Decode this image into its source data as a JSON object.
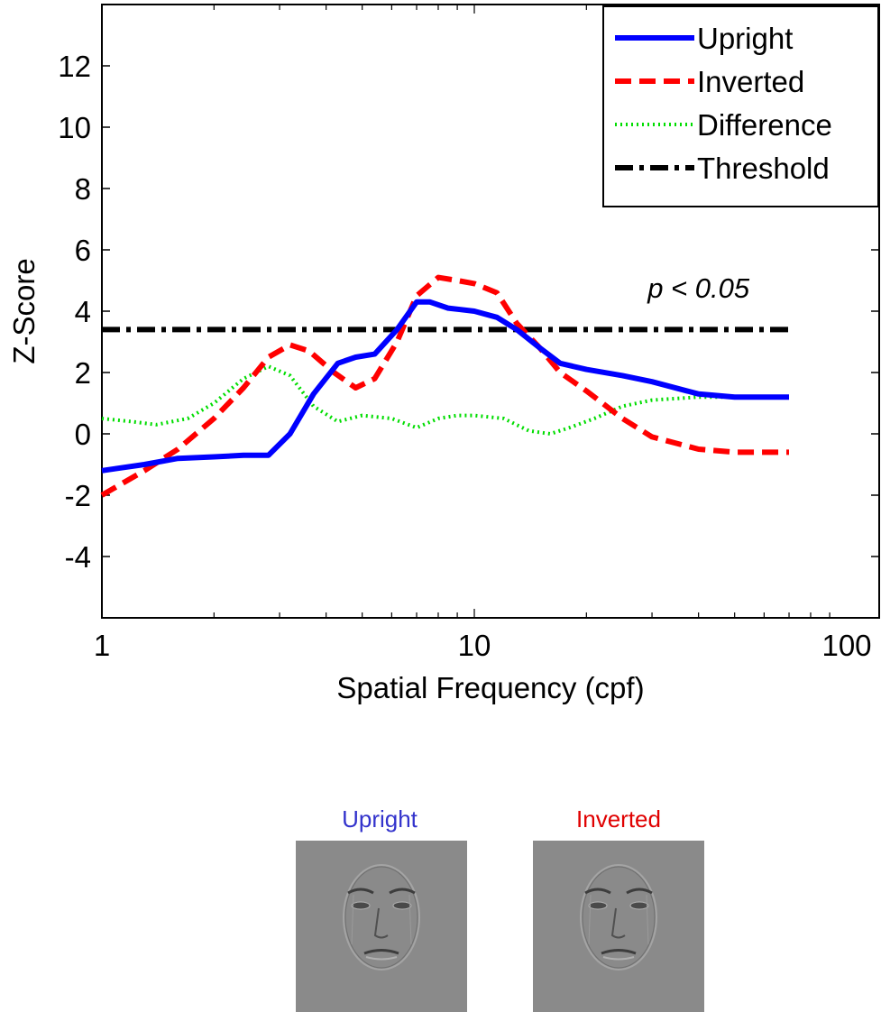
{
  "chart_data": {
    "type": "line",
    "xlabel": "Spatial Frequency (cpf)",
    "ylabel": "Z-Score",
    "xscale": "log",
    "xlim": [
      1,
      100
    ],
    "ylim": [
      -6,
      14
    ],
    "xticks": [
      1,
      10,
      100
    ],
    "xtick_labels": [
      "1",
      "10",
      "100"
    ],
    "yticks": [
      -4,
      -2,
      0,
      2,
      4,
      6,
      8,
      10,
      12
    ],
    "ytick_labels": [
      "-4",
      "-2",
      "0",
      "2",
      "4",
      "6",
      "8",
      "10",
      "12"
    ],
    "grid": false,
    "legend_position": "top-right",
    "annotation": {
      "text": "p < 0.05",
      "x": 40,
      "y": 4.2
    },
    "series": [
      {
        "name": "Upright",
        "color": "#0000ff",
        "style": "solid",
        "x": [
          1,
          1.3,
          1.6,
          2,
          2.4,
          2.8,
          3.2,
          3.7,
          4.3,
          4.8,
          5.4,
          6.2,
          7.0,
          7.6,
          8.5,
          10,
          11.5,
          13,
          15,
          17,
          20,
          25,
          30,
          40,
          50,
          70
        ],
        "y": [
          -1.2,
          -1.0,
          -0.8,
          -0.75,
          -0.7,
          -0.7,
          0.0,
          1.3,
          2.3,
          2.5,
          2.6,
          3.4,
          4.3,
          4.3,
          4.1,
          4.0,
          3.8,
          3.4,
          2.8,
          2.3,
          2.1,
          1.9,
          1.7,
          1.3,
          1.2,
          1.2
        ]
      },
      {
        "name": "Inverted",
        "color": "#ff0000",
        "style": "dashed",
        "x": [
          1,
          1.3,
          1.6,
          2,
          2.4,
          2.8,
          3.2,
          3.6,
          4.2,
          4.8,
          5.4,
          6.2,
          7.0,
          8.0,
          9.0,
          10,
          11.5,
          13,
          15,
          17,
          20,
          25,
          30,
          40,
          50,
          70
        ],
        "y": [
          -2.0,
          -1.2,
          -0.5,
          0.5,
          1.5,
          2.5,
          2.9,
          2.7,
          2.0,
          1.5,
          1.8,
          3.0,
          4.5,
          5.1,
          5.0,
          4.9,
          4.6,
          3.6,
          2.8,
          2.0,
          1.4,
          0.5,
          -0.1,
          -0.5,
          -0.6,
          -0.6
        ]
      },
      {
        "name": "Difference",
        "color": "#00dd00",
        "style": "dotted",
        "x": [
          1,
          1.2,
          1.4,
          1.7,
          2,
          2.4,
          2.8,
          3.2,
          3.7,
          4.3,
          5,
          6,
          7,
          8,
          9,
          10,
          12,
          14,
          16,
          18,
          21,
          25,
          30,
          40,
          50,
          70
        ],
        "y": [
          0.5,
          0.4,
          0.3,
          0.5,
          1.0,
          1.8,
          2.2,
          1.9,
          0.9,
          0.4,
          0.6,
          0.5,
          0.2,
          0.5,
          0.6,
          0.6,
          0.5,
          0.1,
          0.0,
          0.2,
          0.5,
          0.9,
          1.1,
          1.2,
          1.2,
          1.2
        ]
      },
      {
        "name": "Threshold",
        "color": "#000000",
        "style": "dashdot",
        "x": [
          1,
          70
        ],
        "y": [
          3.4,
          3.4
        ]
      }
    ]
  },
  "thumbnails": [
    {
      "label": "Upright",
      "color": "#3333cc"
    },
    {
      "label": "Inverted",
      "color": "#e00000"
    }
  ]
}
